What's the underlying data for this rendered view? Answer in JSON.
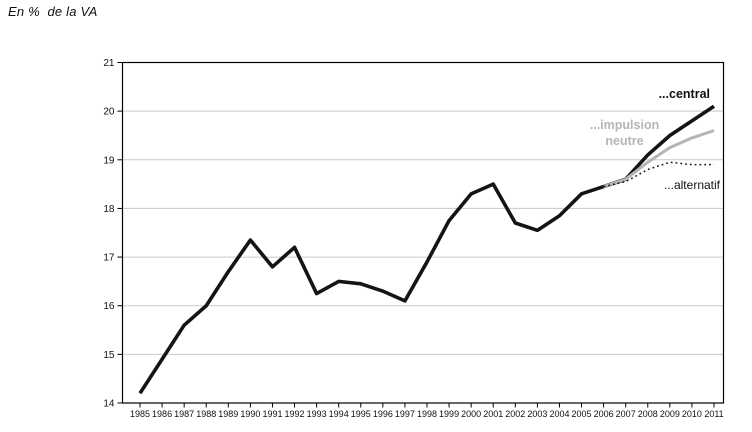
{
  "page": {
    "title": "En %  de la VA"
  },
  "colors": {
    "central_line": "#141414",
    "impulsion_line": "#b5b5b5",
    "alternatif_line": "#141414",
    "gridline": "#c9c9c9",
    "frame": "#000000",
    "legend_gray": "#b5b5b5"
  },
  "chart_data": {
    "type": "line",
    "title": "En %  de la VA",
    "xlabel": "",
    "ylabel": "",
    "ylim": [
      14,
      21
    ],
    "grid": "horizontal",
    "legend_position": "inline-annotations",
    "years": [
      1985,
      1986,
      1987,
      1988,
      1989,
      1990,
      1991,
      1992,
      1993,
      1994,
      1995,
      1996,
      1997,
      1998,
      1999,
      2000,
      2001,
      2002,
      2003,
      2004,
      2005,
      2006,
      2007,
      2008,
      2009,
      2010,
      2011
    ],
    "y_ticks": [
      14,
      15,
      16,
      17,
      18,
      19,
      20,
      21
    ],
    "gridline_values": [
      15,
      16,
      17,
      18,
      19,
      20
    ],
    "series": [
      {
        "name": "...central",
        "style": "solid",
        "color": "#141414",
        "width": 3.6,
        "start_year": 1985,
        "values": [
          14.2,
          14.9,
          15.6,
          16.0,
          16.7,
          17.35,
          16.8,
          17.2,
          16.25,
          16.5,
          16.45,
          16.3,
          16.1,
          16.9,
          17.75,
          18.3,
          18.5,
          17.7,
          17.55,
          17.85,
          18.3,
          18.45,
          18.6,
          19.1,
          19.5,
          19.8,
          20.1
        ]
      },
      {
        "name": "...impulsion neutre",
        "style": "solid",
        "color": "#b5b5b5",
        "width": 3,
        "start_year": 2006,
        "values": [
          18.45,
          18.6,
          18.95,
          19.25,
          19.45,
          19.6
        ]
      },
      {
        "name": "...alternatif",
        "style": "dotted",
        "color": "#141414",
        "width": 1.5,
        "start_year": 2006,
        "values": [
          18.45,
          18.55,
          18.8,
          18.95,
          18.9,
          18.9
        ]
      }
    ],
    "legend": {
      "central": "...central",
      "impulsion_line1": "...impulsion",
      "impulsion_line2": "neutre",
      "alternatif": "...alternatif"
    }
  }
}
